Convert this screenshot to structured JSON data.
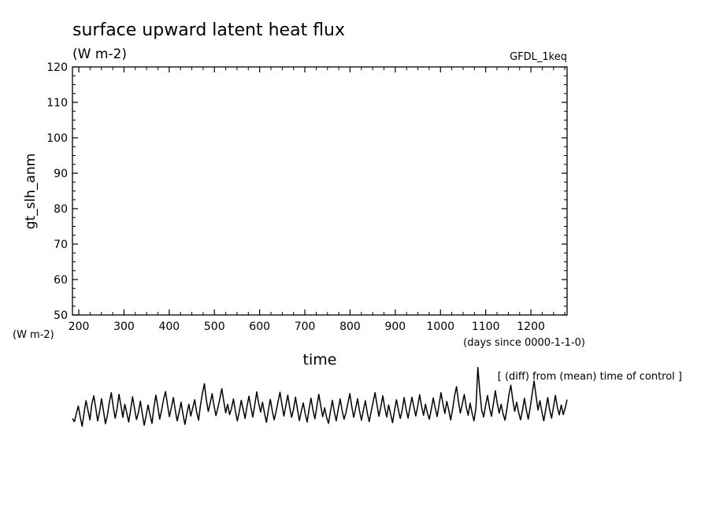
{
  "chart_data": {
    "type": "line",
    "title": "surface upward latent heat flux",
    "subtitle": "(W m-2)",
    "model": "GFDL_1keq",
    "ylabel": "gt_slh_anm",
    "yunit": "(W m-2)",
    "xlabel": "time",
    "xunit": "(days since 0000-1-1-0)",
    "note": "[ (diff) from (mean) time of control ]",
    "xlim": [
      186,
      1280
    ],
    "ylim": [
      50,
      120
    ],
    "xticks": [
      200,
      300,
      400,
      500,
      600,
      700,
      800,
      900,
      1000,
      1100,
      1200
    ],
    "yticks": [
      50,
      60,
      70,
      80,
      90,
      100,
      110,
      120
    ],
    "grid": false,
    "series": [
      {
        "x_start": 186,
        "x_end": 1280,
        "values": [
          20.8,
          19.9,
          22.1,
          24.3,
          21.2,
          18.6,
          22.5,
          25.8,
          23.1,
          20.4,
          24.9,
          27.2,
          23.7,
          20.1,
          22.8,
          26.4,
          22.9,
          19.3,
          21.6,
          25.3,
          28.1,
          24.2,
          20.9,
          23.5,
          27.6,
          24.4,
          21.1,
          24.8,
          22.3,
          19.8,
          23.2,
          26.9,
          23.6,
          20.5,
          22.4,
          25.7,
          22.1,
          18.9,
          21.7,
          24.6,
          21.8,
          19.4,
          23.9,
          27.4,
          24.1,
          20.6,
          23.3,
          26.2,
          28.4,
          24.6,
          21.3,
          23.9,
          26.7,
          23.2,
          20.1,
          22.6,
          25.4,
          21.9,
          19.1,
          22.2,
          24.8,
          21.5,
          23.8,
          26.1,
          22.7,
          20.3,
          24.5,
          27.9,
          30.6,
          26.2,
          22.8,
          25.1,
          27.8,
          24.3,
          21.6,
          23.9,
          26.4,
          29.2,
          25.7,
          22.4,
          24.8,
          21.9,
          23.6,
          26.3,
          22.8,
          20.1,
          22.7,
          25.9,
          23.4,
          20.8,
          24.2,
          27.1,
          23.8,
          21.2,
          24.7,
          28.3,
          25.1,
          22.6,
          25.4,
          22.3,
          19.7,
          23.1,
          26.2,
          22.9,
          20.4,
          22.8,
          25.6,
          28.2,
          24.7,
          21.5,
          24.3,
          27.4,
          23.9,
          21.1,
          23.5,
          26.8,
          23.3,
          20.2,
          22.9,
          25.2,
          22.1,
          19.8,
          23.6,
          26.5,
          23.1,
          20.7,
          24.2,
          27.6,
          24.4,
          21.3,
          23.8,
          21.2,
          19.4,
          22.7,
          25.9,
          22.6,
          20.1,
          23.4,
          26.3,
          23.1,
          20.6,
          22.4,
          25.1,
          27.8,
          24.2,
          21.1,
          23.7,
          26.4,
          22.9,
          20.3,
          23.1,
          25.8,
          22.4,
          19.9,
          22.8,
          25.4,
          28.1,
          24.6,
          21.4,
          24.1,
          27.2,
          23.8,
          21.2,
          24.6,
          22.1,
          19.6,
          22.9,
          26.1,
          23.4,
          20.8,
          23.2,
          26.7,
          23.5,
          20.9,
          23.9,
          26.8,
          24.1,
          21.5,
          24.3,
          27.5,
          24.2,
          21.7,
          24.8,
          22.3,
          20.6,
          23.4,
          26.6,
          23.9,
          21.3,
          24.7,
          28.1,
          24.9,
          22.2,
          25.6,
          23.1,
          20.4,
          23.5,
          27.2,
          29.8,
          25.6,
          22.3,
          24.9,
          27.6,
          24.1,
          21.7,
          25.1,
          22.4,
          20.1,
          23.8,
          35.2,
          28.4,
          23.1,
          21.2,
          24.6,
          27.3,
          23.8,
          21.4,
          24.9,
          28.6,
          25.1,
          22.3,
          24.8,
          22.1,
          20.3,
          23.6,
          27.4,
          30.2,
          26.1,
          22.8,
          25.4,
          22.6,
          20.4,
          23.1,
          26.5,
          23.2,
          20.6,
          23.9,
          27.8,
          31.4,
          27.1,
          23.2,
          25.8,
          22.7,
          20.1,
          23.4,
          26.7,
          23.3,
          20.9,
          24.1,
          27.3,
          23.9,
          21.8,
          24.6,
          21.9,
          23.7,
          26.1
        ]
      }
    ]
  }
}
